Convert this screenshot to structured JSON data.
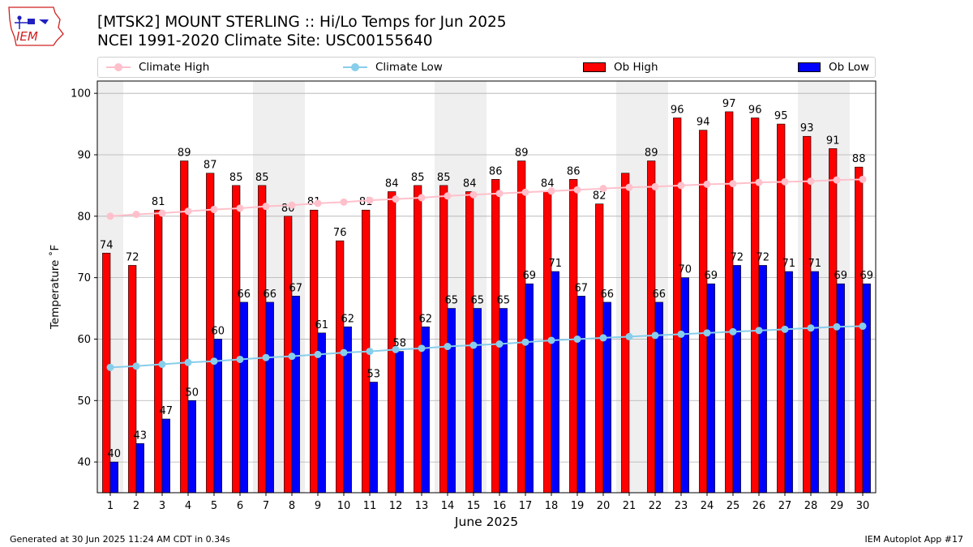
{
  "header": {
    "title_line1": "[MTSK2] MOUNT STERLING :: Hi/Lo Temps for Jun 2025",
    "title_line2": "NCEI 1991-2020 Climate Site: USC00155640",
    "logo_text": "IEM"
  },
  "footer": {
    "generated": "Generated at 30 Jun 2025 11:24 AM CDT in 0.34s",
    "app": "IEM Autoplot App #17"
  },
  "legend": {
    "climate_high": "Climate High",
    "climate_low": "Climate Low",
    "ob_high": "Ob High",
    "ob_low": "Ob Low"
  },
  "colors": {
    "ob_high": "#ff0000",
    "ob_low": "#0000ff",
    "climate_high": "#ffc0cb",
    "climate_low": "#87ceeb",
    "weekend_shade": "#efefef",
    "grid": "#b0b0b0"
  },
  "chart_data": {
    "type": "bar",
    "xlabel": "June 2025",
    "ylabel": "Temperature $^\\circ$F",
    "ylabel_display": "Temperature ˚F",
    "ylim": [
      35,
      102
    ],
    "yticks": [
      40,
      50,
      60,
      70,
      80,
      90,
      100
    ],
    "grid": true,
    "legend_position": "top",
    "categories": [
      "1",
      "2",
      "3",
      "4",
      "5",
      "6",
      "7",
      "8",
      "9",
      "10",
      "11",
      "12",
      "13",
      "14",
      "15",
      "16",
      "17",
      "18",
      "19",
      "20",
      "21",
      "22",
      "23",
      "24",
      "25",
      "26",
      "27",
      "28",
      "29",
      "30"
    ],
    "weekend_days": [
      1,
      7,
      8,
      14,
      15,
      21,
      22,
      28,
      29
    ],
    "series": [
      {
        "name": "Ob High",
        "kind": "bar",
        "values": [
          74,
          72,
          81,
          89,
          87,
          85,
          85,
          80,
          81,
          76,
          81,
          84,
          85,
          85,
          84,
          86,
          89,
          84,
          86,
          82,
          87,
          89,
          96,
          94,
          97,
          96,
          95,
          93,
          91,
          88
        ],
        "labels": [
          "74",
          "72",
          "81",
          "89",
          "87",
          "85",
          "85",
          "80",
          "81",
          "76",
          "81",
          "84",
          "85",
          "85",
          "84",
          "86",
          "89",
          "84",
          "86",
          "82",
          "",
          "89",
          "96",
          "94",
          "97",
          "96",
          "95",
          "93",
          "91",
          "88"
        ]
      },
      {
        "name": "Ob Low",
        "kind": "bar",
        "values": [
          40,
          43,
          47,
          50,
          60,
          66,
          66,
          67,
          61,
          62,
          53,
          58,
          62,
          65,
          65,
          65,
          69,
          71,
          67,
          66,
          null,
          66,
          70,
          69,
          72,
          72,
          71,
          71,
          69,
          69
        ],
        "labels": [
          "40",
          "43",
          "47",
          "50",
          "60",
          "66",
          "66",
          "67",
          "61",
          "62",
          "53",
          "58",
          "62",
          "65",
          "65",
          "65",
          "69",
          "71",
          "67",
          "66",
          "",
          "66",
          "70",
          "69",
          "72",
          "72",
          "71",
          "71",
          "69",
          "69"
        ]
      },
      {
        "name": "Climate High",
        "kind": "line",
        "values": [
          80.0,
          80.3,
          80.5,
          80.8,
          81.1,
          81.3,
          81.6,
          81.8,
          82.1,
          82.3,
          82.6,
          82.8,
          83.0,
          83.3,
          83.5,
          83.7,
          83.9,
          84.1,
          84.3,
          84.5,
          84.7,
          84.8,
          85.0,
          85.2,
          85.3,
          85.5,
          85.6,
          85.7,
          85.9,
          86.0
        ]
      },
      {
        "name": "Climate Low",
        "kind": "line",
        "values": [
          55.4,
          55.6,
          55.9,
          56.2,
          56.4,
          56.7,
          57.0,
          57.2,
          57.5,
          57.8,
          58.0,
          58.3,
          58.5,
          58.8,
          59.0,
          59.2,
          59.5,
          59.8,
          60.0,
          60.2,
          60.4,
          60.6,
          60.8,
          61.0,
          61.2,
          61.4,
          61.6,
          61.8,
          62.0,
          62.1
        ]
      }
    ]
  }
}
